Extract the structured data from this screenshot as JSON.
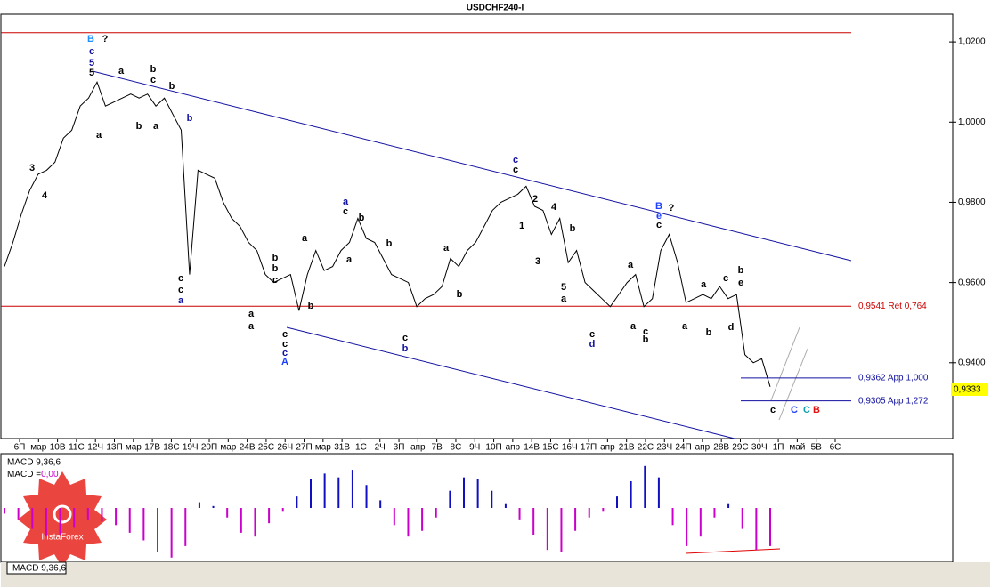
{
  "chart_data": {
    "type": "line",
    "title": "USDCHF240-I",
    "series": [
      {
        "name": "USDCHF",
        "color": "#000000",
        "values": [
          0.964,
          0.97,
          0.977,
          0.983,
          0.987,
          0.988,
          0.99,
          0.996,
          0.998,
          1.004,
          1.006,
          1.01,
          1.004,
          1.005,
          1.006,
          1.007,
          1.006,
          1.007,
          1.004,
          1.006,
          1.002,
          0.998,
          0.962,
          0.988,
          0.987,
          0.986,
          0.98,
          0.976,
          0.974,
          0.97,
          0.968,
          0.962,
          0.96,
          0.961,
          0.962,
          0.953,
          0.962,
          0.968,
          0.963,
          0.964,
          0.968,
          0.97,
          0.976,
          0.971,
          0.97,
          0.966,
          0.962,
          0.961,
          0.96,
          0.954,
          0.956,
          0.957,
          0.959,
          0.966,
          0.964,
          0.968,
          0.97,
          0.974,
          0.978,
          0.98,
          0.981,
          0.982,
          0.984,
          0.979,
          0.978,
          0.972,
          0.976,
          0.965,
          0.968,
          0.96,
          0.958,
          0.956,
          0.954,
          0.957,
          0.96,
          0.962,
          0.954,
          0.956,
          0.968,
          0.972,
          0.965,
          0.955,
          0.956,
          0.957,
          0.956,
          0.959,
          0.956,
          0.957,
          0.942,
          0.94,
          0.941,
          0.934
        ]
      }
    ],
    "ylim": [
      0.9211,
      1.0269
    ],
    "yticks": [
      {
        "value": 1.02,
        "label": "1,0200"
      },
      {
        "value": 1.0,
        "label": "1,0000"
      },
      {
        "value": 0.98,
        "label": "0,9800"
      },
      {
        "value": 0.96,
        "label": "0,9600"
      },
      {
        "value": 0.94,
        "label": "0,9400"
      }
    ],
    "xlabels": [
      "6П",
      "мар",
      "10В",
      "11С",
      "12Ч",
      "13П",
      "мар",
      "17В",
      "18С",
      "19Ч",
      "20П",
      "мар",
      "24В",
      "25С",
      "26Ч",
      "27П",
      "мар",
      "31В",
      "1С",
      "2Ч",
      "3П",
      "апр",
      "7В",
      "8С",
      "9Ч",
      "10П",
      "апр",
      "14В",
      "15С",
      "16Ч",
      "17П",
      "апр",
      "21В",
      "22С",
      "23Ч",
      "24П",
      "апр",
      "28В",
      "29С",
      "30Ч",
      "1П",
      "май",
      "5В",
      "6С"
    ],
    "levels": [
      {
        "value": 1.0223,
        "color": "#cc0000"
      },
      {
        "value": 0.9541,
        "label": "0,9541 Ret 0,764",
        "color": "#cc0000"
      },
      {
        "value": 0.9362,
        "label": "0,9362 App 1,000",
        "color": "#1010a0"
      },
      {
        "value": 0.9305,
        "label": "0,9305 App 1,272",
        "color": "#1010a0"
      }
    ],
    "current_price": {
      "value": 0.9333,
      "label": "0,9333"
    },
    "annotations": [
      {
        "text": "B",
        "color": "#1e90ff"
      },
      {
        "text": "?",
        "color": "#000"
      },
      {
        "text": "c",
        "color": "#1010a0"
      },
      {
        "text": "5",
        "color": "#1010a0"
      },
      {
        "text": "5",
        "color": "#000"
      },
      {
        "text": "3",
        "color": "#000"
      },
      {
        "text": "4",
        "color": "#000"
      },
      {
        "text": "a",
        "color": "#000"
      },
      {
        "text": "b",
        "color": "#000"
      },
      {
        "text": "c",
        "color": "#000"
      },
      {
        "text": "b",
        "color": "#000"
      },
      {
        "text": "a",
        "color": "#000"
      },
      {
        "text": "b",
        "color": "#000"
      },
      {
        "text": "a",
        "color": "#000"
      },
      {
        "text": "b",
        "color": "#1010a0"
      },
      {
        "text": "c",
        "color": "#000"
      },
      {
        "text": "c",
        "color": "#000"
      },
      {
        "text": "a",
        "color": "#1010a0"
      },
      {
        "text": "a",
        "color": "#000"
      },
      {
        "text": "a",
        "color": "#000"
      },
      {
        "text": "b",
        "color": "#000"
      },
      {
        "text": "b",
        "color": "#000"
      },
      {
        "text": "c",
        "color": "#000"
      },
      {
        "text": "b",
        "color": "#000"
      },
      {
        "text": "a",
        "color": "#000"
      },
      {
        "text": "c",
        "color": "#000"
      },
      {
        "text": "c",
        "color": "#000"
      },
      {
        "text": "c",
        "color": "#1010a0"
      },
      {
        "text": "A",
        "color": "#1e40ff"
      },
      {
        "text": "a",
        "color": "#1010a0"
      },
      {
        "text": "c",
        "color": "#000"
      },
      {
        "text": "b",
        "color": "#000"
      },
      {
        "text": "a",
        "color": "#000"
      },
      {
        "text": "b",
        "color": "#000"
      },
      {
        "text": "c",
        "color": "#000"
      },
      {
        "text": "b",
        "color": "#1010a0"
      },
      {
        "text": "a",
        "color": "#000"
      },
      {
        "text": "b",
        "color": "#000"
      },
      {
        "text": "c",
        "color": "#1010a0"
      },
      {
        "text": "c",
        "color": "#000"
      },
      {
        "text": "2",
        "color": "#000"
      },
      {
        "text": "1",
        "color": "#000"
      },
      {
        "text": "4",
        "color": "#000"
      },
      {
        "text": "3",
        "color": "#000"
      },
      {
        "text": "b",
        "color": "#000"
      },
      {
        "text": "5",
        "color": "#000"
      },
      {
        "text": "a",
        "color": "#000"
      },
      {
        "text": "c",
        "color": "#000"
      },
      {
        "text": "d",
        "color": "#1010a0"
      },
      {
        "text": "a",
        "color": "#000"
      },
      {
        "text": "a",
        "color": "#000"
      },
      {
        "text": "c",
        "color": "#000"
      },
      {
        "text": "b",
        "color": "#000"
      },
      {
        "text": "B",
        "color": "#1e40ff"
      },
      {
        "text": "e",
        "color": "#1e40ff"
      },
      {
        "text": "c",
        "color": "#000"
      },
      {
        "text": "?",
        "color": "#000"
      },
      {
        "text": "a",
        "color": "#000"
      },
      {
        "text": "a",
        "color": "#000"
      },
      {
        "text": "b",
        "color": "#000"
      },
      {
        "text": "c",
        "color": "#000"
      },
      {
        "text": "d",
        "color": "#000"
      },
      {
        "text": "b",
        "color": "#000"
      },
      {
        "text": "e",
        "color": "#000"
      },
      {
        "text": "c",
        "color": "#000"
      },
      {
        "text": "C",
        "color": "#1e40ff"
      },
      {
        "text": "C",
        "color": "#10a0b0"
      },
      {
        "text": "B",
        "color": "#e01010"
      }
    ],
    "macd": {
      "title": "MACD 9,36,6",
      "value_label": "MACD =",
      "value_text": "0,00",
      "tab": "MACD 9,36,6",
      "color_up": "#1010c0",
      "color_down": "#cc00cc",
      "ylim": [
        -0.0055,
        0.0055
      ],
      "values": [
        -0.0006,
        -0.0012,
        -0.0022,
        -0.003,
        -0.0028,
        -0.002,
        -0.0012,
        -0.0014,
        -0.0018,
        -0.0026,
        -0.0034,
        -0.0046,
        -0.0052,
        -0.004,
        0.0006,
        0.0002,
        -0.001,
        -0.0026,
        -0.003,
        -0.0016,
        -0.0004,
        0.0012,
        0.003,
        0.0036,
        0.0032,
        0.004,
        0.0024,
        0.0008,
        -0.0018,
        -0.003,
        -0.0024,
        -0.001,
        0.0018,
        0.0032,
        0.003,
        0.0018,
        0.0004,
        -0.0012,
        -0.0028,
        -0.0044,
        -0.0046,
        -0.0024,
        -0.001,
        -0.0004,
        0.0012,
        0.0028,
        0.0044,
        0.0032,
        -0.0018,
        -0.004,
        -0.003,
        -0.001,
        0.0004,
        -0.0022,
        -0.0044,
        -0.004
      ]
    }
  }
}
